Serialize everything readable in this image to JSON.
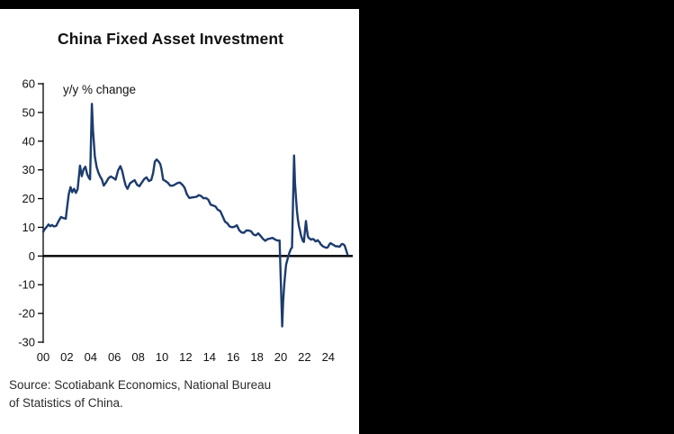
{
  "page": {
    "title": "China Fixed Asset Investment",
    "annotation": "y/y % change",
    "source_line1": "Source: Scotiabank Economics, National Bureau",
    "source_line2": "of Statistics of China."
  },
  "chart_data": {
    "type": "line",
    "title": "China Fixed Asset Investment",
    "ylabel_annotation": "y/y % change",
    "ylim": [
      -30,
      60
    ],
    "ytick_step": 10,
    "yticks": [
      60,
      50,
      40,
      30,
      20,
      10,
      0,
      -10,
      -20,
      -30
    ],
    "xtick_labels": [
      "00",
      "02",
      "04",
      "06",
      "08",
      "10",
      "12",
      "14",
      "16",
      "18",
      "20",
      "22",
      "24"
    ],
    "xtick_years": [
      2000,
      2002,
      2004,
      2006,
      2008,
      2010,
      2012,
      2014,
      2016,
      2018,
      2020,
      2022,
      2024
    ],
    "x_range": [
      2000,
      2025.8
    ],
    "grid": false,
    "legend": "none",
    "line_color": "#1c3c6d",
    "zero_line_color": "#000000",
    "source": "Source: Scotiabank Economics, National Bureau of Statistics of China.",
    "series": [
      {
        "name": "China fixed asset investment, y/y % change (year-to-date)",
        "points": [
          [
            2000.0,
            8.4
          ],
          [
            2000.12,
            9.3
          ],
          [
            2000.3,
            10.2
          ],
          [
            2000.45,
            11.0
          ],
          [
            2000.6,
            10.4
          ],
          [
            2000.75,
            10.8
          ],
          [
            2000.9,
            10.3
          ],
          [
            2001.1,
            10.5
          ],
          [
            2001.3,
            12.2
          ],
          [
            2001.5,
            13.6
          ],
          [
            2001.7,
            13.2
          ],
          [
            2001.9,
            13.0
          ],
          [
            2002.0,
            16.5
          ],
          [
            2002.15,
            21.5
          ],
          [
            2002.3,
            24.0
          ],
          [
            2002.45,
            22.2
          ],
          [
            2002.6,
            23.4
          ],
          [
            2002.75,
            22.0
          ],
          [
            2002.9,
            23.3
          ],
          [
            2003.1,
            31.5
          ],
          [
            2003.25,
            27.8
          ],
          [
            2003.4,
            30.2
          ],
          [
            2003.55,
            31.1
          ],
          [
            2003.7,
            28.6
          ],
          [
            2003.85,
            27.2
          ],
          [
            2003.95,
            26.7
          ],
          [
            2004.1,
            53.0
          ],
          [
            2004.2,
            43.5
          ],
          [
            2004.35,
            34.7
          ],
          [
            2004.5,
            31.0
          ],
          [
            2004.65,
            29.0
          ],
          [
            2004.8,
            27.6
          ],
          [
            2004.95,
            26.6
          ],
          [
            2005.1,
            24.5
          ],
          [
            2005.3,
            25.7
          ],
          [
            2005.5,
            27.1
          ],
          [
            2005.7,
            27.7
          ],
          [
            2005.9,
            27.2
          ],
          [
            2006.1,
            26.6
          ],
          [
            2006.3,
            29.8
          ],
          [
            2006.5,
            31.3
          ],
          [
            2006.65,
            29.6
          ],
          [
            2006.8,
            26.8
          ],
          [
            2006.95,
            24.5
          ],
          [
            2007.1,
            23.4
          ],
          [
            2007.3,
            25.3
          ],
          [
            2007.5,
            25.9
          ],
          [
            2007.7,
            26.4
          ],
          [
            2007.9,
            24.8
          ],
          [
            2008.1,
            24.3
          ],
          [
            2008.3,
            25.6
          ],
          [
            2008.5,
            26.8
          ],
          [
            2008.7,
            27.4
          ],
          [
            2008.9,
            26.1
          ],
          [
            2009.1,
            26.5
          ],
          [
            2009.25,
            28.8
          ],
          [
            2009.4,
            32.9
          ],
          [
            2009.55,
            33.6
          ],
          [
            2009.7,
            33.0
          ],
          [
            2009.85,
            32.1
          ],
          [
            2009.95,
            30.5
          ],
          [
            2010.1,
            26.6
          ],
          [
            2010.3,
            26.1
          ],
          [
            2010.5,
            25.5
          ],
          [
            2010.7,
            24.5
          ],
          [
            2010.9,
            24.5
          ],
          [
            2011.1,
            24.9
          ],
          [
            2011.3,
            25.4
          ],
          [
            2011.5,
            25.6
          ],
          [
            2011.7,
            24.9
          ],
          [
            2011.9,
            23.8
          ],
          [
            2012.1,
            21.5
          ],
          [
            2012.3,
            20.2
          ],
          [
            2012.5,
            20.4
          ],
          [
            2012.7,
            20.5
          ],
          [
            2012.9,
            20.6
          ],
          [
            2013.1,
            21.2
          ],
          [
            2013.3,
            20.9
          ],
          [
            2013.5,
            20.1
          ],
          [
            2013.7,
            20.2
          ],
          [
            2013.9,
            19.6
          ],
          [
            2014.1,
            17.9
          ],
          [
            2014.3,
            17.6
          ],
          [
            2014.5,
            17.3
          ],
          [
            2014.7,
            16.1
          ],
          [
            2014.9,
            15.7
          ],
          [
            2015.1,
            13.9
          ],
          [
            2015.3,
            12.0
          ],
          [
            2015.5,
            11.4
          ],
          [
            2015.7,
            10.3
          ],
          [
            2015.9,
            10.0
          ],
          [
            2016.1,
            10.2
          ],
          [
            2016.3,
            10.7
          ],
          [
            2016.5,
            9.0
          ],
          [
            2016.7,
            8.2
          ],
          [
            2016.9,
            8.1
          ],
          [
            2017.1,
            8.9
          ],
          [
            2017.3,
            8.9
          ],
          [
            2017.5,
            8.6
          ],
          [
            2017.7,
            7.5
          ],
          [
            2017.9,
            7.2
          ],
          [
            2018.1,
            7.9
          ],
          [
            2018.3,
            7.0
          ],
          [
            2018.5,
            6.0
          ],
          [
            2018.7,
            5.3
          ],
          [
            2018.9,
            5.9
          ],
          [
            2019.1,
            6.1
          ],
          [
            2019.3,
            6.3
          ],
          [
            2019.5,
            5.8
          ],
          [
            2019.7,
            5.4
          ],
          [
            2019.9,
            5.4
          ],
          [
            2020.12,
            -24.5
          ],
          [
            2020.2,
            -16.1
          ],
          [
            2020.29,
            -10.3
          ],
          [
            2020.37,
            -6.3
          ],
          [
            2020.45,
            -3.1
          ],
          [
            2020.54,
            -1.6
          ],
          [
            2020.62,
            -0.3
          ],
          [
            2020.7,
            0.8
          ],
          [
            2020.79,
            1.8
          ],
          [
            2020.87,
            2.6
          ],
          [
            2020.95,
            2.9
          ],
          [
            2021.12,
            35.0
          ],
          [
            2021.2,
            25.6
          ],
          [
            2021.29,
            19.9
          ],
          [
            2021.37,
            15.4
          ],
          [
            2021.45,
            12.6
          ],
          [
            2021.54,
            10.3
          ],
          [
            2021.62,
            8.9
          ],
          [
            2021.7,
            7.3
          ],
          [
            2021.79,
            6.1
          ],
          [
            2021.87,
            5.2
          ],
          [
            2021.95,
            4.9
          ],
          [
            2022.12,
            12.2
          ],
          [
            2022.2,
            9.3
          ],
          [
            2022.29,
            6.8
          ],
          [
            2022.37,
            6.2
          ],
          [
            2022.45,
            6.1
          ],
          [
            2022.54,
            5.7
          ],
          [
            2022.62,
            5.8
          ],
          [
            2022.7,
            5.9
          ],
          [
            2022.79,
            5.8
          ],
          [
            2022.87,
            5.3
          ],
          [
            2022.95,
            5.1
          ],
          [
            2023.12,
            5.5
          ],
          [
            2023.2,
            5.1
          ],
          [
            2023.29,
            4.7
          ],
          [
            2023.37,
            4.0
          ],
          [
            2023.45,
            3.8
          ],
          [
            2023.54,
            3.4
          ],
          [
            2023.62,
            3.2
          ],
          [
            2023.7,
            3.1
          ],
          [
            2023.79,
            2.9
          ],
          [
            2023.87,
            2.9
          ],
          [
            2023.95,
            3.0
          ],
          [
            2024.12,
            4.2
          ],
          [
            2024.2,
            4.5
          ],
          [
            2024.29,
            4.2
          ],
          [
            2024.37,
            4.0
          ],
          [
            2024.45,
            3.9
          ],
          [
            2024.54,
            3.6
          ],
          [
            2024.62,
            3.4
          ],
          [
            2024.7,
            3.4
          ],
          [
            2024.79,
            3.4
          ],
          [
            2024.87,
            3.3
          ],
          [
            2024.95,
            3.2
          ],
          [
            2025.12,
            4.1
          ],
          [
            2025.2,
            4.2
          ],
          [
            2025.29,
            4.0
          ],
          [
            2025.37,
            3.7
          ],
          [
            2025.45,
            2.8
          ],
          [
            2025.54,
            1.6
          ],
          [
            2025.62,
            0.5
          ]
        ]
      }
    ]
  }
}
